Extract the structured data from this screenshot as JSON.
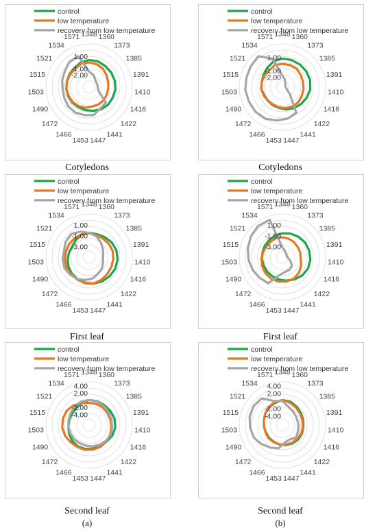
{
  "legend": [
    "control",
    "low temperature",
    "recovery from low temperature"
  ],
  "colors": {
    "control": "#1aa64b",
    "low": "#e87722",
    "recovery": "#a5a5a5"
  },
  "axis_labels": [
    "1348",
    "1360",
    "1373",
    "1385",
    "1391",
    "1410",
    "1416",
    "1422",
    "1441",
    "1447",
    "1453",
    "1466",
    "1472",
    "1490",
    "1503",
    "1515",
    "1521",
    "1534",
    "1571"
  ],
  "captions": [
    "Cotyledons",
    "Cotyledons",
    "First leaf",
    "First leaf",
    "Second leaf",
    "Second leaf"
  ],
  "sublabels": [
    "(a)",
    "(b)"
  ],
  "chart_data": [
    {
      "type": "radar",
      "caption": "Cotyledons",
      "ticks": [
        "1.00",
        "-1.00",
        "-2.00"
      ],
      "rmin": -4,
      "rmax": 3,
      "series": [
        {
          "name": "control",
          "values": [
            0.4,
            0.4,
            0.3,
            0.3,
            0.3,
            0.3,
            0.2,
            0.2,
            0.1,
            -0.1,
            -0.2,
            -0.3,
            -0.3,
            -0.3,
            -0.3,
            -0.3,
            -0.2,
            -0.1,
            0.2
          ]
        },
        {
          "name": "low temperature",
          "values": [
            0.0,
            -0.1,
            -0.3,
            -0.6,
            -0.8,
            -0.9,
            -0.9,
            -0.8,
            -0.8,
            -0.8,
            -0.6,
            -0.5,
            -0.4,
            -0.4,
            -0.3,
            -0.3,
            -0.3,
            -0.3,
            0.0
          ]
        },
        {
          "name": "recovery from low temperature",
          "values": [
            -1.5,
            -1.9,
            -2.4,
            -2.6,
            -2.6,
            -2.6,
            -2.3,
            -0.3,
            -0.1,
            0.6,
            0.6,
            0.7,
            0.6,
            0.4,
            0.3,
            0.5,
            0.7,
            1.2,
            1.3
          ]
        }
      ]
    },
    {
      "type": "radar",
      "caption": "Cotyledons",
      "ticks": [
        "1.00",
        "-1.00",
        "-2.00"
      ],
      "rmin": -3.5,
      "rmax": 3,
      "series": [
        {
          "name": "control",
          "values": [
            0.8,
            0.8,
            0.8,
            0.8,
            0.8,
            0.7,
            0.5,
            0.3,
            0.1,
            -0.1,
            -0.3,
            -0.4,
            -0.5,
            -0.5,
            -0.3,
            -0.3,
            -0.1,
            0.2,
            0.6
          ]
        },
        {
          "name": "low temperature",
          "values": [
            0.0,
            0.0,
            0.0,
            -0.2,
            -0.3,
            -0.3,
            -0.3,
            -0.2,
            -0.2,
            -0.3,
            -0.4,
            -0.5,
            -0.5,
            -0.4,
            -0.3,
            -0.3,
            -0.3,
            -0.3,
            0.0
          ]
        },
        {
          "name": "recovery from low temperature",
          "values": [
            -1.8,
            -2.3,
            -2.8,
            -3.0,
            -3.0,
            -3.0,
            -2.8,
            -2.0,
            0.9,
            1.3,
            1.6,
            1.9,
            2.0,
            2.0,
            2.1,
            2.1,
            2.2,
            2.4,
            1.0
          ]
        }
      ]
    },
    {
      "type": "radar",
      "caption": "First leaf",
      "ticks": [
        "1.00",
        "-1.00",
        "-3.00"
      ],
      "rmin": -5,
      "rmax": 3,
      "series": [
        {
          "name": "control",
          "values": [
            -0.5,
            -0.5,
            -0.3,
            0.0,
            0.2,
            0.3,
            0.3,
            0.2,
            0.1,
            0.0,
            -0.2,
            -0.4,
            -0.6,
            -0.8,
            -1.0,
            -1.2,
            -1.3,
            -1.0,
            -0.6
          ]
        },
        {
          "name": "low temperature",
          "values": [
            -0.6,
            -0.7,
            -0.7,
            -0.6,
            -0.5,
            -0.5,
            -0.5,
            -0.4,
            -0.2,
            0.0,
            -0.1,
            -0.3,
            -0.4,
            -0.4,
            -0.5,
            -0.6,
            -0.6,
            -0.6,
            -0.6
          ]
        },
        {
          "name": "recovery from low temperature",
          "values": [
            -0.5,
            -0.9,
            -1.5,
            -2.0,
            -2.3,
            -2.4,
            -2.2,
            -1.8,
            -1.5,
            -1.0,
            -0.7,
            -0.4,
            -0.2,
            0.0,
            -0.1,
            -0.2,
            0.2,
            0.4,
            0.0
          ]
        }
      ]
    },
    {
      "type": "radar",
      "caption": "First leaf",
      "ticks": [
        "1.00",
        "-1.00",
        "-3.00"
      ],
      "rmin": -5,
      "rmax": 3,
      "series": [
        {
          "name": "control",
          "values": [
            -0.6,
            -0.4,
            -0.2,
            0.0,
            0.1,
            0.2,
            0.2,
            0.0,
            -0.3,
            -0.6,
            -0.8,
            -1.0,
            -1.1,
            -1.2,
            -1.2,
            -1.2,
            -1.1,
            -1.0,
            -0.8
          ]
        },
        {
          "name": "low temperature",
          "values": [
            -1.3,
            -1.4,
            -1.5,
            -1.6,
            -1.6,
            -1.6,
            -1.2,
            -0.8,
            -0.5,
            -0.4,
            -0.4,
            -0.5,
            -0.7,
            -0.9,
            -1.1,
            -1.3,
            -1.4,
            -1.4,
            -1.3
          ]
        },
        {
          "name": "recovery from low temperature",
          "values": [
            -3.2,
            -3.7,
            -4.0,
            -4.1,
            -4.2,
            -4.0,
            -3.4,
            -2.6,
            -2.3,
            -2.2,
            -1.6,
            0.5,
            0.7,
            1.0,
            1.3,
            1.6,
            2.0,
            2.3,
            2.3
          ]
        }
      ]
    },
    {
      "type": "radar",
      "caption": "Second leaf",
      "ticks": [
        "4.00",
        "2.00",
        "-2.00",
        "-4.00"
      ],
      "rmin": -7,
      "rmax": 5,
      "series": [
        {
          "name": "control",
          "values": [
            0.0,
            0.0,
            0.0,
            0.1,
            0.3,
            0.3,
            0.1,
            -0.3,
            -0.5,
            -0.4,
            -0.3,
            -0.3,
            -0.6,
            -0.9,
            -1.2,
            -1.3,
            -1.3,
            -1.1,
            -0.6
          ]
        },
        {
          "name": "low temperature",
          "values": [
            -0.8,
            -0.8,
            -0.8,
            -0.9,
            -0.9,
            -0.8,
            -0.6,
            -0.4,
            -0.2,
            -0.1,
            0.0,
            -0.1,
            0.0,
            0.3,
            0.5,
            0.5,
            0.4,
            0.0,
            -0.6
          ]
        },
        {
          "name": "recovery from low temperature",
          "values": [
            0.0,
            -0.1,
            -0.3,
            -0.5,
            -0.6,
            -0.6,
            -0.4,
            -0.6,
            -0.8,
            -1.0,
            -1.2,
            -1.3,
            -1.3,
            -1.3,
            -1.2,
            -1.1,
            -0.9,
            -0.5,
            -0.1
          ]
        }
      ]
    },
    {
      "type": "radar",
      "caption": "Second leaf",
      "ticks": [
        "4.00",
        "2.00",
        "-2.00",
        "-4.00"
      ],
      "rmin": -6.5,
      "rmax": 5,
      "series": [
        {
          "name": "control",
          "values": [
            0.2,
            0.1,
            -0.3,
            -0.6,
            -0.8,
            -0.9,
            -0.8,
            -0.8,
            -0.9,
            -1.1,
            -1.3,
            -1.5,
            -1.6,
            -1.7,
            -1.6,
            -1.4,
            -1.0,
            -0.6,
            -0.3
          ]
        },
        {
          "name": "low temperature",
          "values": [
            0.2,
            -0.2,
            -0.6,
            -0.9,
            -1.0,
            -1.0,
            -1.0,
            -1.1,
            -1.1,
            -1.2,
            -1.3,
            -1.4,
            -1.4,
            -1.6,
            -1.6,
            -1.4,
            -1.0,
            -0.5,
            -0.1
          ]
        },
        {
          "name": "recovery from low temperature",
          "values": [
            -0.1,
            -1.4,
            -1.9,
            -2.2,
            -2.3,
            -2.2,
            -2.0,
            -1.6,
            -2.2,
            -1.9,
            -0.2,
            0.3,
            1.0,
            1.8,
            2.1,
            2.5,
            2.7,
            2.5,
            0.3
          ]
        }
      ]
    }
  ]
}
